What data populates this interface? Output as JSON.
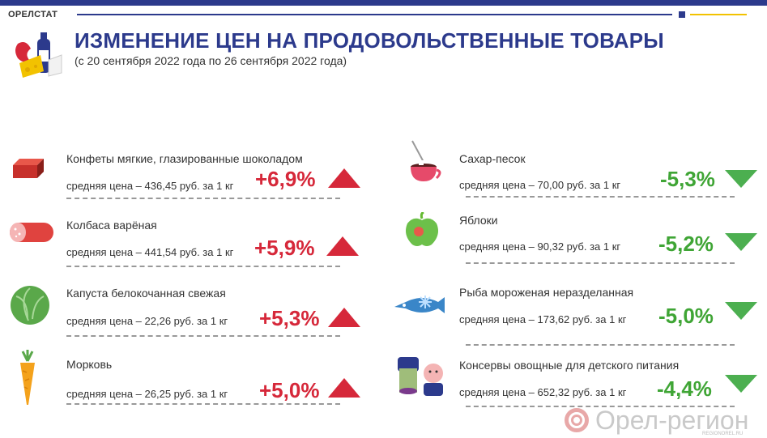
{
  "header": {
    "brand": "ОРЕЛСТАТ",
    "title": "ИЗМЕНЕНИЕ ЦЕН НА ПРОДОВОЛЬСТВЕННЫЕ ТОВАРЫ",
    "subtitle": "(с 20 сентября 2022 года по 26 сентября 2022 года)"
  },
  "colors": {
    "brand_blue": "#2c3a8c",
    "increase_red": "#d6283a",
    "decrease_green": "#3fa535",
    "accent_yellow": "#f2c200"
  },
  "increases": [
    {
      "icon": "candy-icon",
      "name": "Конфеты мягкие, глазированные шоколадом",
      "price": "средняя цена – 436,45 руб. за 1 кг",
      "change": "+6,9%"
    },
    {
      "icon": "sausage-icon",
      "name": "Колбаса варёная",
      "price": "средняя цена – 441,54 руб. за 1 кг",
      "change": "+5,9%"
    },
    {
      "icon": "cabbage-icon",
      "name": "Капуста белокочанная свежая",
      "price": "средняя цена – 22,26 руб. за 1 кг",
      "change": "+5,3%"
    },
    {
      "icon": "carrot-icon",
      "name": "Морковь",
      "price": "средняя цена – 26,25 руб. за 1 кг",
      "change": "+5,0%"
    }
  ],
  "decreases": [
    {
      "icon": "sugar-icon",
      "name": "Сахар-песок",
      "price": "средняя цена – 70,00 руб. за 1 кг",
      "change": "-5,3%"
    },
    {
      "icon": "apple-icon",
      "name": "Яблоки",
      "price": "средняя цена – 90,32 руб. за 1 кг",
      "change": "-5,2%"
    },
    {
      "icon": "fish-icon",
      "name": "Рыба мороженая неразделанная",
      "price": "средняя цена – 173,62 руб. за 1 кг",
      "change": "-5,0%"
    },
    {
      "icon": "baby-food-icon",
      "name": "Консервы овощные для детского питания",
      "price": "средняя цена – 652,32 руб. за 1 кг",
      "change": "-4,4%"
    }
  ],
  "watermark": {
    "text": "Орел-регион",
    "sub": "REGIONOREL.RU"
  }
}
